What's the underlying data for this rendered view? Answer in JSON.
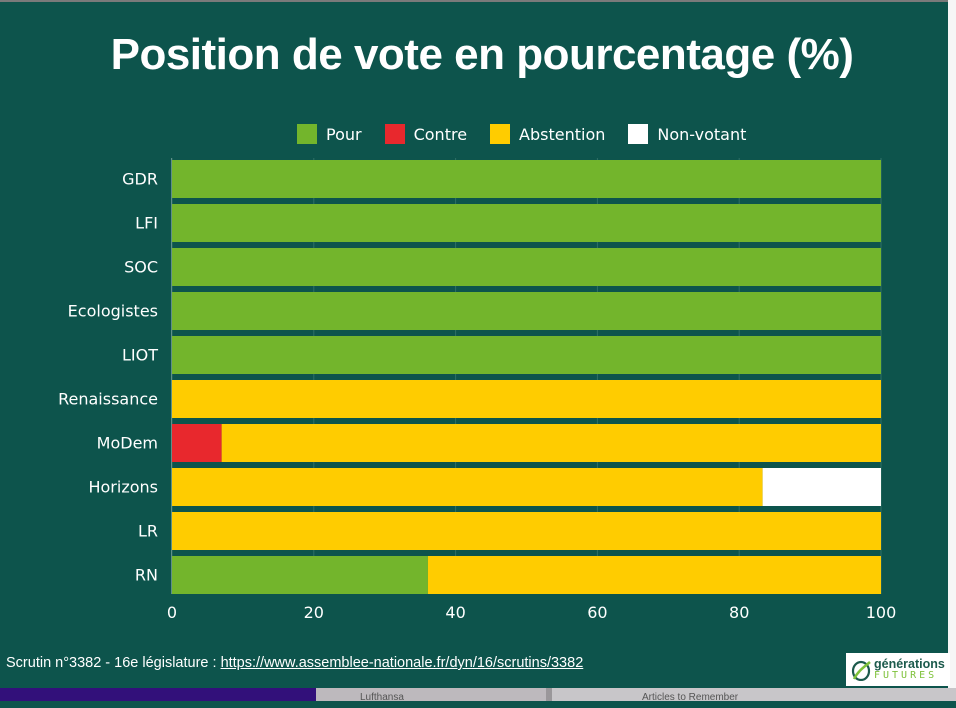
{
  "chart_data": {
    "type": "bar",
    "orientation": "horizontal",
    "stacked": true,
    "title": "Position de vote en pourcentage (%)",
    "xlabel": "",
    "ylabel": "",
    "xlim": [
      0,
      100
    ],
    "x_ticks": [
      "0",
      "20",
      "40",
      "60",
      "80",
      "100"
    ],
    "x_tick_values": [
      0,
      20,
      40,
      60,
      80,
      100
    ],
    "grid": true,
    "legend_position": "top",
    "categories": [
      "GDR",
      "LFI",
      "SOC",
      "Ecologistes",
      "LIOT",
      "Renaissance",
      "MoDem",
      "Horizons",
      "LR",
      "RN"
    ],
    "series": [
      {
        "name": "Pour",
        "color": "#73b52c",
        "values": [
          100,
          100,
          100,
          100,
          100,
          0,
          0,
          0,
          0,
          36.1
        ]
      },
      {
        "name": "Contre",
        "color": "#e8282d",
        "values": [
          0,
          0,
          0,
          0,
          0,
          0,
          7.0,
          0,
          0,
          0
        ]
      },
      {
        "name": "Abstention",
        "color": "#ffcc00",
        "values": [
          0,
          0,
          0,
          0,
          0,
          100,
          93.0,
          83.3,
          100,
          63.9
        ]
      },
      {
        "name": "Non-votant",
        "color": "#ffffff",
        "values": [
          0,
          0,
          0,
          0,
          0,
          0,
          0,
          16.7,
          0,
          0
        ]
      }
    ]
  },
  "footer": {
    "text": "Scrutin n°3382 - 16e législature : ",
    "link": "https://www.assemblee-nationale.fr/dyn/16/scrutins/3382"
  },
  "logo": {
    "line1": "générations",
    "line2": "FUTURES"
  },
  "background_strip": {
    "item1": "Lufthansa",
    "item2": "Articles to Remember"
  }
}
